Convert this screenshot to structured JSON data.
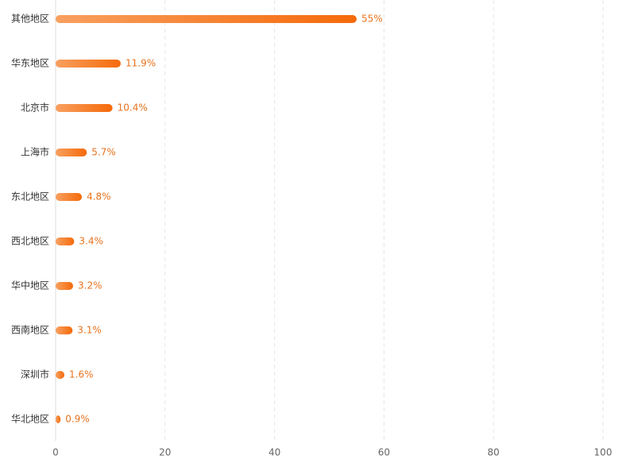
{
  "chart_data": {
    "type": "barh",
    "categories": [
      "其他地区",
      "华东地区",
      "北京市",
      "上海市",
      "东北地区",
      "西北地区",
      "华中地区",
      "西南地区",
      "深圳市",
      "华北地区"
    ],
    "values": [
      55,
      11.9,
      10.4,
      5.7,
      4.8,
      3.4,
      3.2,
      3.1,
      1.6,
      0.9
    ],
    "value_labels": [
      "55%",
      "11.9%",
      "10.4%",
      "5.7%",
      "4.8%",
      "3.4%",
      "3.2%",
      "3.1%",
      "1.6%",
      "0.9%"
    ],
    "color": "#f56a0a",
    "xlim": [
      0,
      100
    ],
    "xticks": [
      0,
      20,
      40,
      60,
      80,
      100
    ],
    "grid": true
  }
}
